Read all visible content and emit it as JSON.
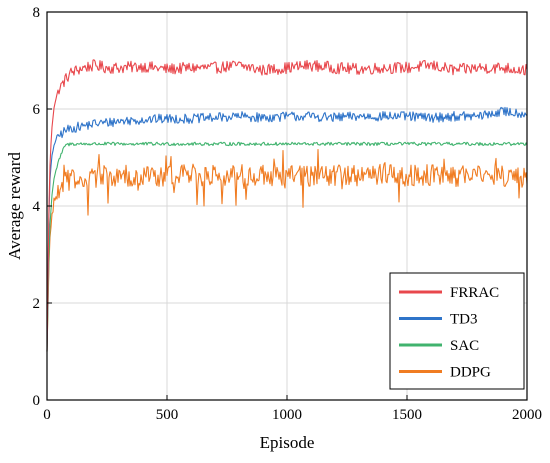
{
  "chart_data": {
    "type": "line",
    "xlabel": "Episode",
    "ylabel": "Average reward",
    "xlim": [
      0,
      2000
    ],
    "ylim": [
      0,
      8
    ],
    "x_ticks": [
      0,
      500,
      1000,
      1500,
      2000
    ],
    "y_ticks": [
      0,
      2,
      4,
      6,
      8
    ],
    "grid": true,
    "legend_position": "bottom-right",
    "series": [
      {
        "name": "FRRAC",
        "color": "#e8474c",
        "x": [
          0,
          10,
          20,
          30,
          50,
          75,
          100,
          150,
          200,
          250,
          300,
          400,
          500,
          600,
          700,
          800,
          900,
          1000,
          1100,
          1200,
          1300,
          1400,
          1500,
          1600,
          1700,
          1800,
          1900,
          2000
        ],
        "values": [
          1.0,
          4.6,
          5.6,
          6.1,
          6.4,
          6.6,
          6.75,
          6.85,
          6.9,
          6.85,
          6.85,
          6.88,
          6.82,
          6.85,
          6.85,
          6.9,
          6.8,
          6.85,
          6.9,
          6.85,
          6.82,
          6.85,
          6.85,
          6.9,
          6.8,
          6.85,
          6.85,
          6.8
        ],
        "noise": 0.12
      },
      {
        "name": "TD3",
        "color": "#2f74c9",
        "x": [
          0,
          10,
          20,
          30,
          50,
          75,
          100,
          150,
          200,
          250,
          300,
          400,
          500,
          600,
          700,
          800,
          900,
          1000,
          1100,
          1200,
          1300,
          1400,
          1500,
          1600,
          1700,
          1800,
          1900,
          2000
        ],
        "values": [
          1.0,
          4.4,
          5.0,
          5.3,
          5.45,
          5.55,
          5.6,
          5.65,
          5.7,
          5.72,
          5.75,
          5.78,
          5.8,
          5.8,
          5.82,
          5.85,
          5.82,
          5.85,
          5.85,
          5.82,
          5.85,
          5.85,
          5.85,
          5.82,
          5.85,
          5.85,
          5.95,
          5.9
        ],
        "noise": 0.1
      },
      {
        "name": "SAC",
        "color": "#40b36e",
        "x": [
          0,
          10,
          20,
          30,
          50,
          75,
          100,
          150,
          200,
          250,
          300,
          400,
          500,
          600,
          700,
          800,
          900,
          1000,
          1100,
          1200,
          1300,
          1400,
          1500,
          1600,
          1700,
          1800,
          1900,
          2000
        ],
        "values": [
          1.0,
          3.4,
          4.2,
          4.6,
          4.95,
          5.25,
          5.28,
          5.28,
          5.28,
          5.28,
          5.28,
          5.28,
          5.28,
          5.28,
          5.28,
          5.28,
          5.28,
          5.28,
          5.28,
          5.28,
          5.28,
          5.28,
          5.28,
          5.28,
          5.28,
          5.28,
          5.28,
          5.28
        ],
        "noise": 0.035
      },
      {
        "name": "DDPG",
        "color": "#f07c22",
        "x": [
          0,
          10,
          20,
          30,
          50,
          75,
          100,
          150,
          200,
          250,
          300,
          400,
          500,
          600,
          700,
          800,
          900,
          1000,
          1100,
          1200,
          1300,
          1400,
          1500,
          1600,
          1700,
          1800,
          1900,
          2000
        ],
        "values": [
          1.0,
          3.2,
          3.8,
          4.1,
          4.35,
          4.5,
          4.55,
          4.6,
          4.6,
          4.62,
          4.62,
          4.62,
          4.62,
          4.65,
          4.62,
          4.65,
          4.62,
          4.62,
          4.62,
          4.65,
          4.62,
          4.65,
          4.62,
          4.65,
          4.62,
          4.65,
          4.62,
          4.6
        ],
        "noise": 0.22
      }
    ]
  }
}
